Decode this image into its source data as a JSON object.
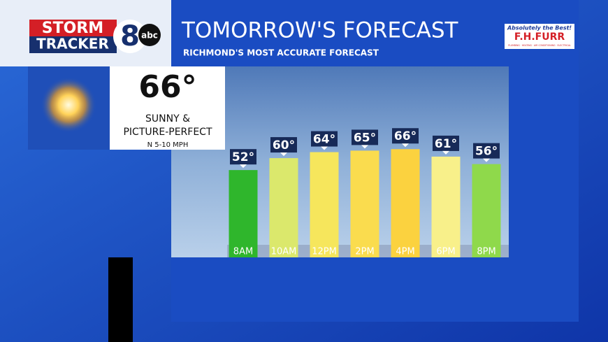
{
  "header": {
    "logo_top": "STORM",
    "logo_bottom": "TRACKER",
    "logo_number": "8",
    "logo_network": "abc",
    "sponsor_tagline": "Absolutely the Best!",
    "sponsor_name": "F.H.FURR",
    "sponsor_services": "PLUMBING · HEATING · AIR CONDITIONING · ELECTRICAL"
  },
  "summary": {
    "high": "66°",
    "condition_line1": "SUNNY &",
    "condition_line2": "PICTURE-PERFECT",
    "wind": "N 5-10 MPH"
  },
  "chart_data": {
    "type": "bar",
    "title": "TOMORROW'S FORECAST",
    "subtitle": "RICHMOND'S MOST ACCURATE FORECAST",
    "categories": [
      "8AM",
      "10AM",
      "12PM",
      "2PM",
      "4PM",
      "6PM",
      "8PM"
    ],
    "values": [
      52,
      60,
      64,
      65,
      66,
      61,
      56
    ],
    "value_labels": [
      "52°",
      "60°",
      "64°",
      "65°",
      "66°",
      "61°",
      "56°"
    ],
    "colors": [
      "#2fb62c",
      "#dbe86c",
      "#f6e65c",
      "#fadc4e",
      "#fbd23f",
      "#f8f08a",
      "#8fd94b"
    ],
    "ylim": [
      2,
      119
    ]
  }
}
